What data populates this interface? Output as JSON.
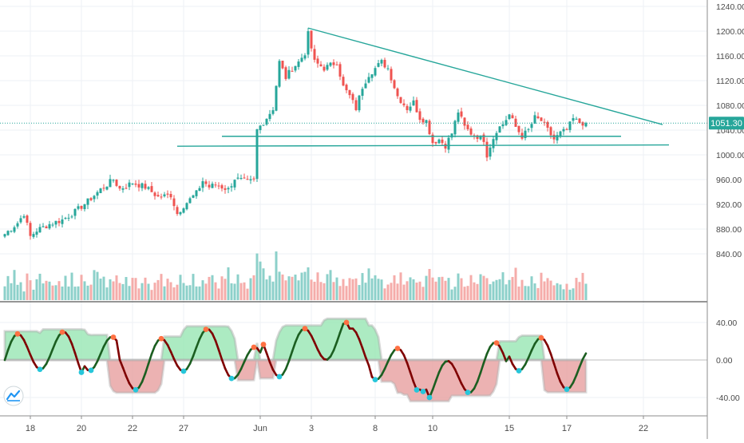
{
  "colors": {
    "background": "#ffffff",
    "grid": "#eef1f4",
    "axis_text": "#4a4a4a",
    "up": "#26a69a",
    "down": "#ef5350",
    "trend_line": "#26a69a",
    "price_line": "#26a69a",
    "price_label_bg": "#26a69a",
    "osc_up_fill": "#9ee8b8",
    "osc_down_fill": "#e8a0a0",
    "osc_band": "#9e9e9e",
    "osc_line_up": "#1b5e20",
    "osc_line_down": "#7f0000",
    "marker_high": "#ff7043",
    "marker_low": "#26c6da"
  },
  "chart_data": [
    {
      "type": "candlestick",
      "title": "",
      "current_price": 1051.3,
      "current_price_label": "1051.30",
      "y_axis": {
        "ylim": [
          800,
          1250
        ],
        "tick_values": [
          840,
          880,
          920,
          960,
          1000,
          1040,
          1080,
          1120,
          1160,
          1200,
          1240
        ],
        "tick_labels": [
          "840.00",
          "880.00",
          "920.00",
          "960.00",
          "1000.00",
          "1040.00",
          "1080.00",
          "1120.00",
          "1160.00",
          "1200.00",
          "1240.00"
        ]
      },
      "x_axis": {
        "tick_labels": [
          "18",
          "20",
          "22",
          "27",
          "Jun",
          "3",
          "8",
          "10",
          "15",
          "17",
          "22"
        ],
        "tick_index": [
          8,
          24,
          40,
          56,
          80,
          96,
          116,
          134,
          158,
          176,
          200
        ]
      },
      "approx_closes_by_index": [
        [
          0,
          872
        ],
        [
          4,
          890
        ],
        [
          6,
          905
        ],
        [
          8,
          868
        ],
        [
          10,
          878
        ],
        [
          14,
          888
        ],
        [
          18,
          895
        ],
        [
          22,
          908
        ],
        [
          26,
          925
        ],
        [
          30,
          944
        ],
        [
          34,
          960
        ],
        [
          36,
          945
        ],
        [
          40,
          955
        ],
        [
          44,
          948
        ],
        [
          48,
          932
        ],
        [
          52,
          935
        ],
        [
          54,
          905
        ],
        [
          56,
          918
        ],
        [
          60,
          938
        ],
        [
          62,
          958
        ],
        [
          64,
          948
        ],
        [
          66,
          952
        ],
        [
          70,
          944
        ],
        [
          72,
          962
        ],
        [
          76,
          956
        ],
        [
          78,
          958
        ],
        [
          79,
          1040
        ],
        [
          82,
          1060
        ],
        [
          84,
          1075
        ],
        [
          86,
          1150
        ],
        [
          88,
          1125
        ],
        [
          90,
          1140
        ],
        [
          92,
          1150
        ],
        [
          94,
          1165
        ],
        [
          95,
          1195
        ],
        [
          97,
          1150
        ],
        [
          100,
          1140
        ],
        [
          104,
          1150
        ],
        [
          106,
          1110
        ],
        [
          108,
          1095
        ],
        [
          110,
          1075
        ],
        [
          112,
          1110
        ],
        [
          114,
          1130
        ],
        [
          116,
          1140
        ],
        [
          118,
          1150
        ],
        [
          120,
          1140
        ],
        [
          123,
          1095
        ],
        [
          126,
          1075
        ],
        [
          128,
          1085
        ],
        [
          130,
          1060
        ],
        [
          132,
          1055
        ],
        [
          134,
          1020
        ],
        [
          136,
          1025
        ],
        [
          138,
          1015
        ],
        [
          140,
          1035
        ],
        [
          142,
          1070
        ],
        [
          144,
          1045
        ],
        [
          146,
          1035
        ],
        [
          148,
          1030
        ],
        [
          150,
          1025
        ],
        [
          151,
          1000
        ],
        [
          152,
          1015
        ],
        [
          154,
          1040
        ],
        [
          156,
          1050
        ],
        [
          158,
          1065
        ],
        [
          160,
          1045
        ],
        [
          162,
          1030
        ],
        [
          164,
          1040
        ],
        [
          166,
          1060
        ],
        [
          168,
          1055
        ],
        [
          170,
          1040
        ],
        [
          172,
          1025
        ],
        [
          174,
          1035
        ],
        [
          176,
          1040
        ],
        [
          178,
          1058
        ],
        [
          180,
          1052
        ],
        [
          182,
          1051.3
        ]
      ],
      "volume_relative": [
        0.3,
        0.5,
        0.4,
        0.6,
        0.3,
        0.4,
        0.2,
        0.5,
        0.4,
        0.3,
        0.5,
        0.6,
        0.3,
        0.4,
        0.5,
        0.3,
        0.4,
        0.5,
        0.3,
        0.6,
        0.4,
        0.5,
        0.3,
        0.4,
        0.6,
        0.5,
        0.3,
        0.4,
        0.6,
        0.7,
        0.4,
        0.5,
        0.3,
        0.4,
        0.5,
        0.6,
        0.4,
        0.3,
        0.5,
        0.4,
        0.6,
        0.5,
        0.3,
        0.4,
        0.5,
        0.4,
        0.3,
        0.5,
        0.4,
        0.6,
        0.3,
        0.4,
        0.5,
        0.3,
        0.4,
        0.6,
        0.5,
        0.4,
        0.3,
        0.5,
        0.4,
        0.3,
        0.5,
        0.4,
        0.6,
        0.5,
        0.4,
        0.3,
        0.5,
        0.4,
        0.6,
        0.4,
        0.3,
        0.5,
        0.4,
        0.5,
        0.3,
        0.6,
        0.5,
        1.0,
        0.7,
        0.8,
        0.5,
        0.6,
        0.5,
        0.9,
        0.6,
        0.5,
        0.4,
        0.6,
        0.5,
        0.7,
        0.4,
        0.5,
        0.6,
        0.8,
        0.5,
        0.4,
        0.6,
        0.5,
        0.4,
        0.5,
        0.6,
        0.4,
        0.5,
        0.3,
        0.5,
        0.4,
        0.6,
        0.5,
        0.4,
        0.3,
        0.5,
        0.4,
        0.6,
        0.5,
        0.7,
        0.4,
        0.5,
        0.3,
        0.4,
        0.5,
        0.6,
        0.4,
        0.5,
        0.3,
        0.4,
        0.5,
        0.6,
        0.4,
        0.5,
        0.3,
        0.6,
        0.8,
        0.5,
        0.4,
        0.6,
        0.5,
        0.4,
        0.5,
        0.3,
        0.4,
        0.6,
        0.5,
        0.4,
        0.3,
        0.7,
        0.5,
        0.4,
        0.6,
        0.5,
        0.4,
        0.3,
        0.5,
        0.6,
        0.4,
        0.5,
        0.3,
        0.4,
        0.5,
        0.6,
        0.4,
        0.5,
        0.3,
        0.4,
        0.5,
        0.4,
        0.3,
        0.5,
        0.4,
        0.6,
        0.4,
        0.3,
        0.5,
        0.4,
        0.3,
        0.4,
        0.3
      ],
      "lines": [
        {
          "name": "",
          "kind": "descending-resistance",
          "from": [
            95,
            1205
          ],
          "to": [
            206,
            1049
          ]
        },
        {
          "name": "",
          "kind": "support-upper",
          "from": [
            68,
            1030
          ],
          "to": [
            193,
            1030
          ]
        },
        {
          "name": "",
          "kind": "support-lower",
          "from": [
            54,
            1014
          ],
          "to": [
            208,
            1016
          ]
        }
      ]
    },
    {
      "type": "line",
      "title": "",
      "ylim": [
        -60,
        60
      ],
      "tick_values": [
        40,
        0,
        -40
      ],
      "tick_labels": [
        "40.00",
        "0.00",
        "-40.00"
      ]
    }
  ],
  "icons": {
    "logo": "tradingview-logo-icon"
  }
}
